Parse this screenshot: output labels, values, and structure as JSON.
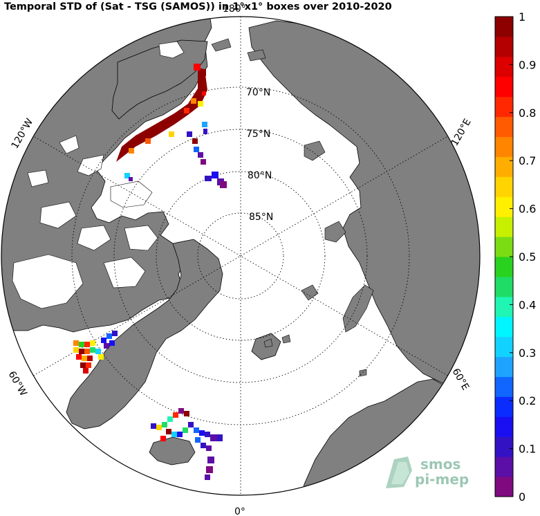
{
  "title": "Temporal STD of (Sat - TSG (SAMOS)) in 1°x1° boxes over 2010-2020",
  "map": {
    "projection": "north polar stereographic",
    "land_color": "#808080",
    "ocean_color": "#ffffff",
    "latitude_labels": [
      "70°N",
      "75°N",
      "80°N",
      "85°N"
    ],
    "longitude_labels": [
      "180°",
      "120°W",
      "120°E",
      "60°W",
      "60°E",
      "0°"
    ]
  },
  "colorbar": {
    "ticks": [
      "0",
      "0.1",
      "0.2",
      "0.3",
      "0.4",
      "0.5",
      "0.6",
      "0.7",
      "0.8",
      "0.9",
      "1"
    ],
    "min": 0,
    "max": 1,
    "colors": [
      "#7f0a80",
      "#5b0fa6",
      "#3312c4",
      "#1a0ff0",
      "#0a2cff",
      "#1066ff",
      "#1ea4ff",
      "#12d2ff",
      "#00f5ff",
      "#20f5b4",
      "#20dc66",
      "#28d21e",
      "#7bdc14",
      "#c6f000",
      "#fff000",
      "#ffd400",
      "#ffae00",
      "#ff8400",
      "#ff5a00",
      "#ff2800",
      "#ff0000",
      "#dc0000",
      "#b40000",
      "#8c0000"
    ]
  },
  "logo": {
    "line1": "smos",
    "line2": "pi-mep"
  }
}
